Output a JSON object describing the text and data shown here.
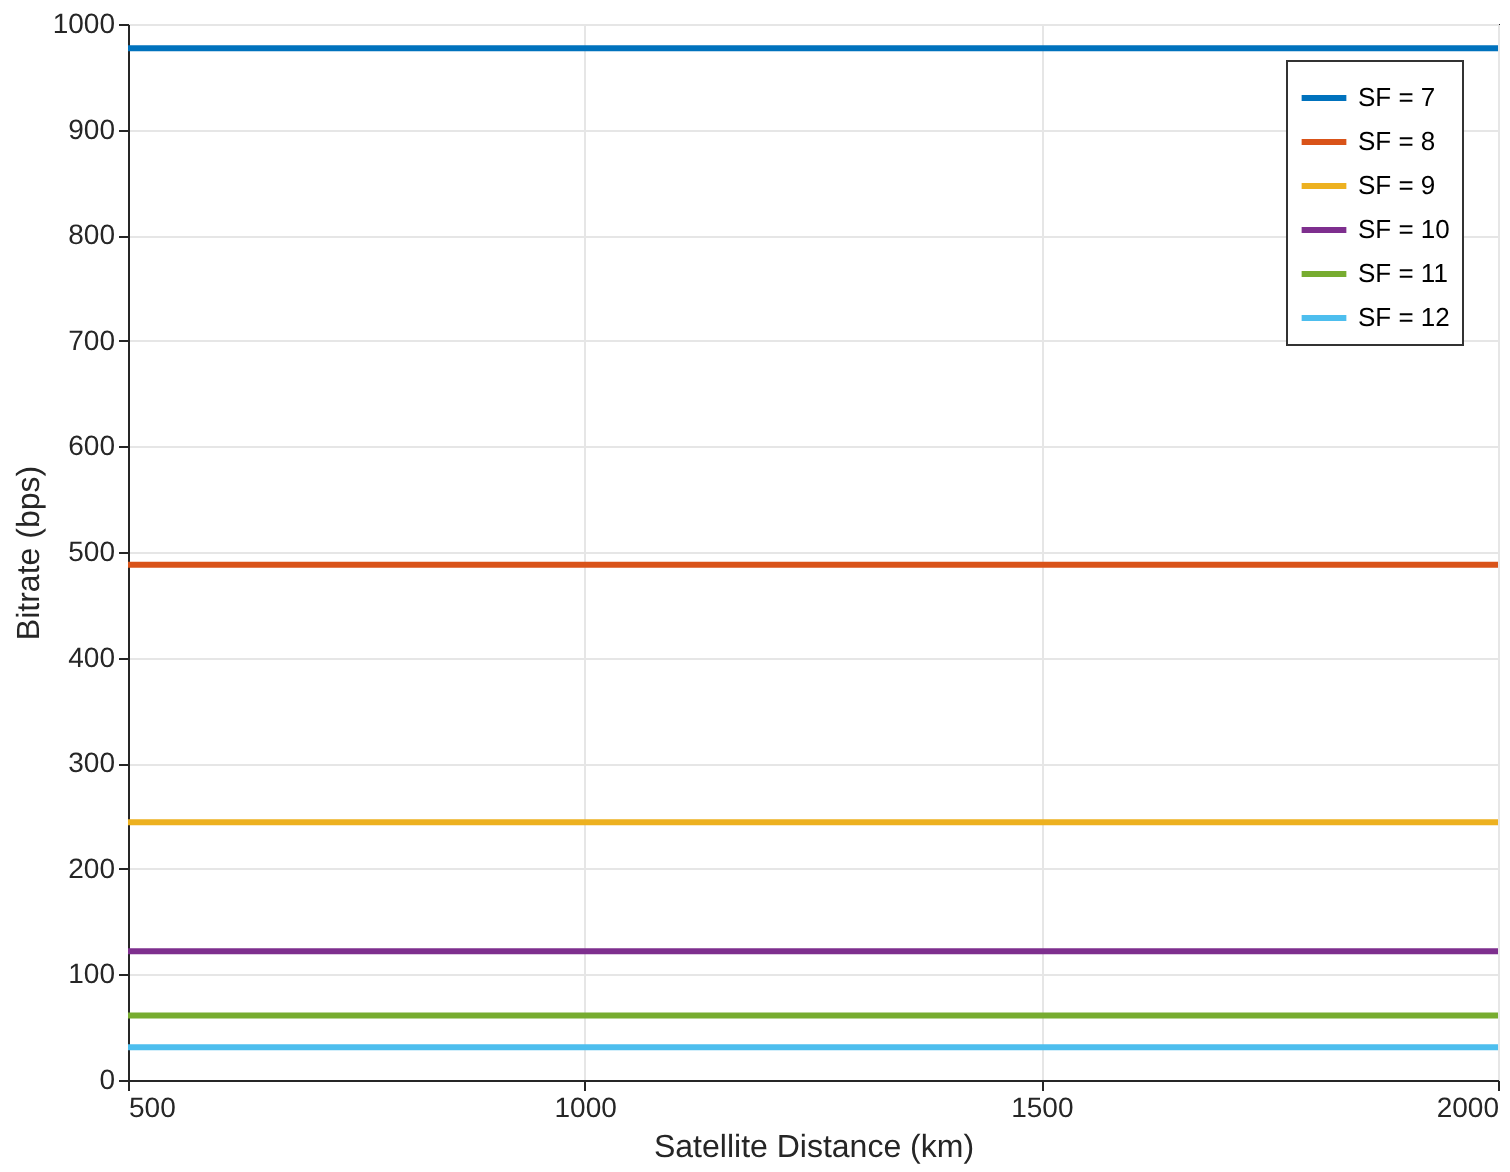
{
  "chart_data": {
    "type": "line",
    "xlabel": "Satellite Distance (km)",
    "ylabel": "Bitrate (bps)",
    "x": [
      500,
      2000
    ],
    "series": [
      {
        "name": "SF = 7",
        "color": "#0072bd",
        "values": [
          977,
          977
        ]
      },
      {
        "name": "SF = 8",
        "color": "#d95319",
        "values": [
          488,
          488
        ]
      },
      {
        "name": "SF = 9",
        "color": "#edb120",
        "values": [
          244,
          244
        ]
      },
      {
        "name": "SF = 10",
        "color": "#7e2f8e",
        "values": [
          122,
          122
        ]
      },
      {
        "name": "SF = 11",
        "color": "#77ac30",
        "values": [
          61,
          61
        ]
      },
      {
        "name": "SF = 12",
        "color": "#4dbeee",
        "values": [
          31,
          31
        ]
      }
    ],
    "xlim": [
      500,
      2000
    ],
    "xticks": [
      500,
      1000,
      1500,
      2000
    ],
    "ylim": [
      0,
      1000
    ],
    "yticks": [
      0,
      100,
      200,
      300,
      400,
      500,
      600,
      700,
      800,
      900,
      1000
    ],
    "grid": true,
    "legend": "top right",
    "marker": "none",
    "line_style": "solid"
  }
}
